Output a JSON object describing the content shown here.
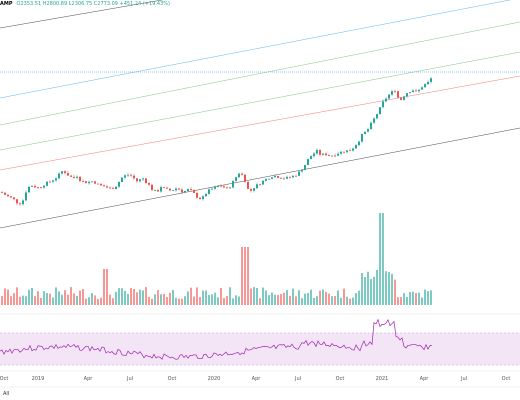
{
  "legend": {
    "symbol": "AMP",
    "ohlc": "O2353.51 H2800.89 L2306.75 C2773.09 +451.24 (+19.43%)"
  },
  "x_axis": [
    "Oct",
    "2019",
    "Apr",
    "Jul",
    "Oct",
    "2020",
    "Apr",
    "Jul",
    "Oct",
    "2021",
    "Apr",
    "Jul",
    "Oct"
  ],
  "timeframe": "All",
  "colors": {
    "up": "#26a69a",
    "down": "#ef5350",
    "rsi": "#9c27b0",
    "rsi_band": "#f3e5f5"
  },
  "chart_data": {
    "type": "candlestick",
    "channel_lines": [
      "#000000",
      "#2196f3",
      "#4caf50",
      "#4caf50",
      "#f44336",
      "#000000"
    ],
    "price_shape": [
      [
        0,
        50
      ],
      [
        6,
        44
      ],
      [
        12,
        40
      ],
      [
        18,
        32
      ],
      [
        22,
        38
      ],
      [
        26,
        55
      ],
      [
        30,
        60
      ],
      [
        34,
        58
      ],
      [
        38,
        56
      ],
      [
        44,
        62
      ],
      [
        50,
        66
      ],
      [
        56,
        72
      ],
      [
        62,
        82
      ],
      [
        66,
        76
      ],
      [
        72,
        70
      ],
      [
        76,
        74
      ],
      [
        80,
        66
      ],
      [
        86,
        64
      ],
      [
        92,
        66
      ],
      [
        98,
        60
      ],
      [
        104,
        58
      ],
      [
        110,
        54
      ],
      [
        116,
        60
      ],
      [
        120,
        70
      ],
      [
        126,
        76
      ],
      [
        130,
        74
      ],
      [
        136,
        66
      ],
      [
        142,
        70
      ],
      [
        148,
        60
      ],
      [
        152,
        52
      ],
      [
        156,
        50
      ],
      [
        160,
        58
      ],
      [
        164,
        54
      ],
      [
        170,
        52
      ],
      [
        176,
        56
      ],
      [
        182,
        50
      ],
      [
        188,
        54
      ],
      [
        194,
        46
      ],
      [
        198,
        40
      ],
      [
        202,
        42
      ],
      [
        206,
        50
      ],
      [
        210,
        54
      ],
      [
        214,
        56
      ],
      [
        218,
        60
      ],
      [
        222,
        58
      ],
      [
        226,
        54
      ],
      [
        230,
        60
      ],
      [
        234,
        70
      ],
      [
        238,
        78
      ],
      [
        242,
        74
      ],
      [
        246,
        60
      ],
      [
        248,
        48
      ],
      [
        252,
        56
      ],
      [
        258,
        62
      ],
      [
        262,
        66
      ],
      [
        266,
        70
      ],
      [
        272,
        74
      ],
      [
        278,
        72
      ],
      [
        284,
        70
      ],
      [
        290,
        72
      ],
      [
        296,
        76
      ],
      [
        300,
        82
      ],
      [
        304,
        90
      ],
      [
        308,
        100
      ],
      [
        312,
        106
      ],
      [
        316,
        110
      ],
      [
        320,
        104
      ],
      [
        324,
        106
      ],
      [
        328,
        104
      ],
      [
        332,
        104
      ],
      [
        338,
        108
      ],
      [
        344,
        110
      ],
      [
        350,
        112
      ],
      [
        354,
        118
      ],
      [
        358,
        126
      ],
      [
        362,
        136
      ],
      [
        366,
        140
      ],
      [
        370,
        150
      ],
      [
        374,
        160
      ],
      [
        378,
        170
      ],
      [
        382,
        182
      ],
      [
        386,
        190
      ],
      [
        390,
        196
      ],
      [
        394,
        200
      ],
      [
        396,
        190
      ],
      [
        400,
        186
      ],
      [
        404,
        194
      ],
      [
        408,
        198
      ],
      [
        412,
        200
      ],
      [
        416,
        196
      ],
      [
        420,
        204
      ],
      [
        424,
        208
      ],
      [
        428,
        212
      ],
      [
        432,
        222
      ]
    ]
  }
}
